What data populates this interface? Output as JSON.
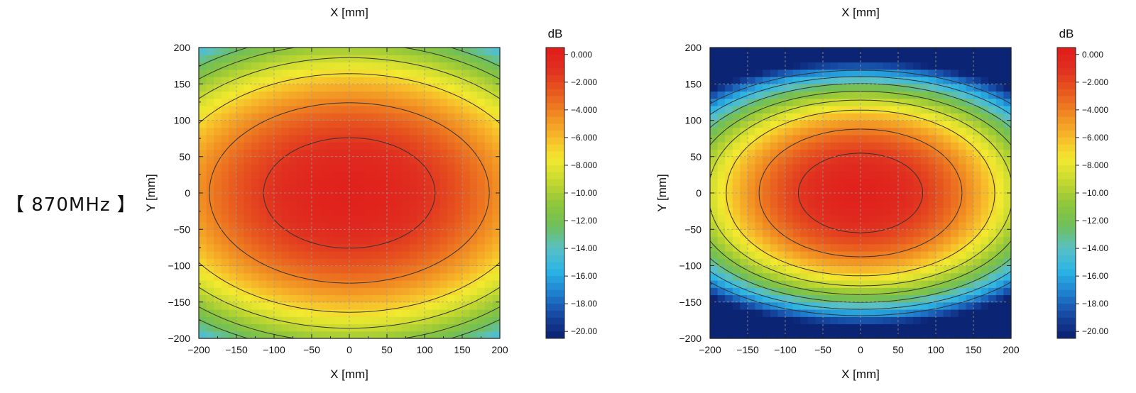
{
  "page_label": "【 870MHz 】",
  "colors": {
    "colormap": [
      "#0a1f6e",
      "#1646a0",
      "#1f7fd0",
      "#2ab4e4",
      "#58c0c8",
      "#6fbf5a",
      "#8fc63a",
      "#c4d830",
      "#f2ea2f",
      "#f7b92a",
      "#f08a22",
      "#e85a1f",
      "#e03020",
      "#e01b1b"
    ],
    "contour_line": "#333333",
    "grid": "#999999"
  },
  "chart_data": [
    {
      "type": "heatmap",
      "title": "",
      "top_xlabel": "X [mm]",
      "xlabel": "X [mm]",
      "ylabel": "Y [mm]",
      "xlim": [
        -200,
        200
      ],
      "ylim": [
        -200,
        200
      ],
      "x_ticks": [
        "−200",
        "−150",
        "−100",
        "−50",
        "0",
        "50",
        "100",
        "150",
        "200"
      ],
      "y_ticks": [
        "200",
        "150",
        "100",
        "50",
        "0",
        "−50",
        "−100",
        "−150",
        "−200"
      ],
      "grid": true,
      "colorbar": {
        "label": "dB",
        "range": [
          -20.5,
          0.5
        ],
        "ticks": [
          "0.000",
          "−2.000",
          "−4.000",
          "−6.000",
          "−8.000",
          "−10.00",
          "−12.00",
          "−14.00",
          "−16.00",
          "−18.00",
          "−20.00"
        ],
        "tick_values": [
          0,
          -2,
          -4,
          -6,
          -8,
          -10,
          -12,
          -14,
          -16,
          -18,
          -20
        ]
      },
      "field": {
        "peak_db": 0,
        "ax_mm": 150,
        "ay_mm": 100,
        "pattern": "elliptical",
        "min_db_at_corners": -14
      },
      "contour_levels_db": [
        -1.5,
        -4,
        -7,
        -9,
        -11,
        -12.5
      ]
    },
    {
      "type": "heatmap",
      "title": "",
      "top_xlabel": "X [mm]",
      "xlabel": "X [mm]",
      "ylabel": "Y [mm]",
      "xlim": [
        -200,
        200
      ],
      "ylim": [
        -200,
        200
      ],
      "x_ticks": [
        "−200",
        "−150",
        "−100",
        "−50",
        "0",
        "50",
        "100",
        "150",
        "200"
      ],
      "y_ticks": [
        "200",
        "150",
        "100",
        "50",
        "0",
        "−50",
        "−100",
        "−150",
        "−200"
      ],
      "grid": true,
      "colorbar": {
        "label": "dB",
        "range": [
          -20.5,
          0.5
        ],
        "ticks": [
          "0.000",
          "−2.000",
          "−4.000",
          "−6.000",
          "−8.000",
          "−10.00",
          "−12.00",
          "−14.00",
          "−16.00",
          "−18.00",
          "−20.00"
        ],
        "tick_values": [
          0,
          -2,
          -4,
          -6,
          -8,
          -10,
          -12,
          -14,
          -16,
          -18,
          -20
        ]
      },
      "field": {
        "peak_db": 0,
        "ax_mm": 100,
        "ay_mm": 67,
        "pattern": "banded",
        "min_db_at_top_bottom": -20
      },
      "contour_levels_db": [
        -1.5,
        -4,
        -7,
        -9,
        -11,
        -13,
        -15,
        -17
      ]
    }
  ]
}
